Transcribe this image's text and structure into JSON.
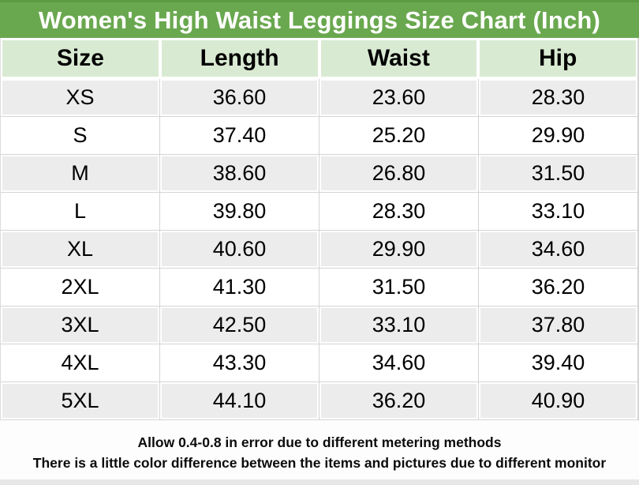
{
  "chart_data": {
    "type": "table",
    "title": "Women's High Waist Leggings Size Chart (Inch)",
    "columns": [
      "Size",
      "Length",
      "Waist",
      "Hip"
    ],
    "rows": [
      [
        "XS",
        "36.60",
        "23.60",
        "28.30"
      ],
      [
        "S",
        "37.40",
        "25.20",
        "29.90"
      ],
      [
        "M",
        "38.60",
        "26.80",
        "31.50"
      ],
      [
        "L",
        "39.80",
        "28.30",
        "33.10"
      ],
      [
        "XL",
        "40.60",
        "29.90",
        "34.60"
      ],
      [
        "2XL",
        "41.30",
        "31.50",
        "36.20"
      ],
      [
        "3XL",
        "42.50",
        "33.10",
        "37.80"
      ],
      [
        "4XL",
        "43.30",
        "34.60",
        "39.40"
      ],
      [
        "5XL",
        "44.10",
        "36.20",
        "40.90"
      ]
    ],
    "notes": [
      "Allow 0.4-0.8 in error due to different metering methods",
      "There is a little color difference between the items and pictures due to different monitor"
    ],
    "layout_hints": {
      "units": "inches",
      "alternating_row_shading": true,
      "header_position": "top",
      "gridlines": true
    }
  },
  "colors": {
    "title_bg": "#6aa84f",
    "title_top_edge": "#5d9a44",
    "title_text": "#ffffff",
    "header_bg": "#d9ead3",
    "row_alt_bg": "#ececec",
    "row_bg": "#ffffff",
    "gridline": "#d4d4d4",
    "text": "#000000",
    "footer_bg": "#fdfdfd",
    "bottom_strip": "#e7e7e7"
  }
}
